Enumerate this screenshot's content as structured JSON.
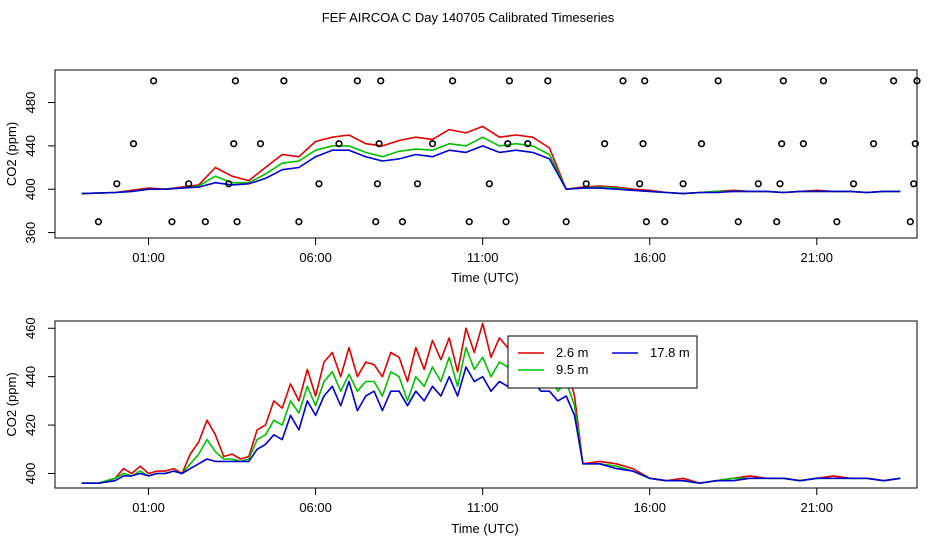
{
  "title": "FEF AIRCOA C  Day 140705  Calibrated Timeseries",
  "colors": {
    "s1": "#e00000",
    "s2": "#00c000",
    "s3": "#0000d0",
    "marker": "#000000"
  },
  "chart_data": [
    {
      "type": "line",
      "panel": "top",
      "xlabel": "Time (UTC)",
      "ylabel": "CO2 (ppm)",
      "xlim": [
        -1.8,
        24.0
      ],
      "ylim": [
        355,
        510
      ],
      "xticks": [
        1,
        6,
        11,
        16,
        21
      ],
      "xticklabels": [
        "01:00",
        "06:00",
        "11:00",
        "16:00",
        "21:00"
      ],
      "yticks": [
        360,
        400,
        440,
        480
      ],
      "yticklabels": [
        "360",
        "400",
        "440",
        "480"
      ],
      "series": [
        {
          "name": "2.6 m",
          "color": "#e00000",
          "x": [
            -1,
            0,
            0.5,
            1,
            1.5,
            2,
            2.5,
            3,
            3.5,
            4,
            4.5,
            5,
            5.5,
            6,
            6.5,
            7,
            7.5,
            8,
            8.5,
            9,
            9.5,
            10,
            10.5,
            11,
            11.5,
            12,
            12.5,
            13,
            13.5,
            14,
            14.5,
            15,
            15.5,
            16,
            16.5,
            17,
            17.5,
            18,
            18.5,
            19,
            19.5,
            20,
            20.5,
            21,
            21.5,
            22,
            22.5,
            23,
            23.5
          ],
          "values": [
            396,
            397,
            399,
            401,
            400,
            402,
            404,
            420,
            412,
            408,
            420,
            432,
            430,
            444,
            448,
            450,
            442,
            440,
            445,
            448,
            446,
            455,
            452,
            458,
            448,
            450,
            448,
            438,
            400,
            402,
            403,
            402,
            400,
            399,
            397,
            396,
            397,
            398,
            399,
            398,
            398,
            397,
            398,
            399,
            398,
            398,
            397,
            398,
            398
          ]
        },
        {
          "name": "9.5 m",
          "color": "#00c000",
          "x": [
            -1,
            0,
            0.5,
            1,
            1.5,
            2,
            2.5,
            3,
            3.5,
            4,
            4.5,
            5,
            5.5,
            6,
            6.5,
            7,
            7.5,
            8,
            8.5,
            9,
            9.5,
            10,
            10.5,
            11,
            11.5,
            12,
            12.5,
            13,
            13.5,
            14,
            14.5,
            15,
            15.5,
            16,
            16.5,
            17,
            17.5,
            18,
            18.5,
            19,
            19.5,
            20,
            20.5,
            21,
            21.5,
            22,
            22.5,
            23,
            23.5
          ],
          "values": [
            396,
            397,
            398,
            400,
            400,
            401,
            403,
            412,
            406,
            406,
            414,
            424,
            426,
            436,
            440,
            440,
            434,
            430,
            435,
            437,
            436,
            442,
            440,
            448,
            440,
            442,
            440,
            432,
            400,
            401,
            402,
            401,
            399,
            398,
            397,
            396,
            397,
            398,
            398,
            398,
            398,
            397,
            398,
            398,
            398,
            398,
            397,
            398,
            398
          ]
        },
        {
          "name": "17.8 m",
          "color": "#0000d0",
          "x": [
            -1,
            0,
            0.5,
            1,
            1.5,
            2,
            2.5,
            3,
            3.5,
            4,
            4.5,
            5,
            5.5,
            6,
            6.5,
            7,
            7.5,
            8,
            8.5,
            9,
            9.5,
            10,
            10.5,
            11,
            11.5,
            12,
            12.5,
            13,
            13.5,
            14,
            14.5,
            15,
            15.5,
            16,
            16.5,
            17,
            17.5,
            18,
            18.5,
            19,
            19.5,
            20,
            20.5,
            21,
            21.5,
            22,
            22.5,
            23,
            23.5
          ],
          "values": [
            396,
            397,
            398,
            400,
            400,
            401,
            402,
            406,
            404,
            405,
            410,
            418,
            420,
            430,
            436,
            436,
            430,
            426,
            428,
            432,
            430,
            436,
            434,
            440,
            434,
            436,
            434,
            428,
            400,
            401,
            401,
            400,
            399,
            398,
            397,
            396,
            397,
            397,
            398,
            398,
            398,
            397,
            398,
            398,
            398,
            398,
            397,
            398,
            398
          ]
        },
        {
          "name": "markers",
          "color": "#000000",
          "style": "points",
          "x": [
            -0.5,
            0.05,
            0.55,
            1.15,
            1.7,
            2.2,
            2.7,
            3.4,
            3.55,
            3.6,
            3.65,
            4.35,
            5.05,
            5.5,
            6.1,
            6.7,
            7.25,
            7.8,
            7.85,
            7.9,
            7.95,
            8.6,
            9.05,
            9.5,
            10.1,
            10.6,
            11.2,
            11.7,
            11.75,
            11.8,
            12.35,
            12.95,
            13.5,
            14.1,
            14.65,
            15.2,
            15.7,
            15.8,
            15.85,
            15.9,
            16.45,
            17.0,
            17.55,
            18.05,
            18.65,
            19.25,
            19.8,
            19.9,
            19.95,
            20.0,
            20.6,
            21.2,
            21.6,
            22.1,
            22.7,
            23.3,
            23.8,
            23.9,
            23.95,
            24.0
          ],
          "values": [
            370,
            405,
            442,
            500,
            370,
            405,
            370,
            405,
            442,
            500,
            370,
            442,
            500,
            370,
            405,
            442,
            500,
            370,
            405,
            442,
            500,
            370,
            405,
            442,
            500,
            370,
            405,
            370,
            442,
            500,
            442,
            500,
            370,
            405,
            442,
            500,
            405,
            442,
            500,
            370,
            370,
            405,
            442,
            500,
            370,
            405,
            370,
            405,
            442,
            500,
            442,
            500,
            370,
            405,
            442,
            500,
            370,
            405,
            442,
            500
          ]
        }
      ]
    },
    {
      "type": "line",
      "panel": "bottom",
      "xlabel": "Time (UTC)",
      "ylabel": "CO2 (ppm)",
      "xlim": [
        -1.8,
        24.0
      ],
      "ylim": [
        394,
        463
      ],
      "xticks": [
        1,
        6,
        11,
        16,
        21
      ],
      "xticklabels": [
        "01:00",
        "06:00",
        "11:00",
        "16:00",
        "21:00"
      ],
      "yticks": [
        400,
        420,
        440,
        460
      ],
      "yticklabels": [
        "400",
        "420",
        "440",
        "460"
      ],
      "legend": {
        "position": "top-center",
        "entries": [
          "2.6 m",
          "17.8 m",
          "9.5 m"
        ]
      },
      "series": [
        {
          "name": "2.6 m",
          "color": "#e00000",
          "x": [
            -1,
            -0.5,
            0,
            0.25,
            0.5,
            0.75,
            1,
            1.25,
            1.5,
            1.75,
            2,
            2.25,
            2.5,
            2.75,
            3,
            3.25,
            3.5,
            3.75,
            4,
            4.25,
            4.5,
            4.75,
            5,
            5.25,
            5.5,
            5.75,
            6,
            6.25,
            6.5,
            6.75,
            7,
            7.25,
            7.5,
            7.75,
            8,
            8.25,
            8.5,
            8.75,
            9,
            9.25,
            9.5,
            9.75,
            10,
            10.25,
            10.5,
            10.75,
            11,
            11.25,
            11.5,
            11.75,
            12,
            12.25,
            12.5,
            12.75,
            13,
            13.25,
            13.5,
            13.75,
            14,
            14.5,
            15,
            15.5,
            16,
            16.5,
            17,
            17.5,
            18,
            18.5,
            19,
            19.5,
            20,
            20.5,
            21,
            21.5,
            22,
            22.5,
            23,
            23.5
          ],
          "values": [
            396,
            396,
            398,
            402,
            400,
            403,
            400,
            401,
            401,
            402,
            400,
            408,
            413,
            422,
            416,
            407,
            408,
            406,
            407,
            418,
            420,
            430,
            427,
            437,
            430,
            443,
            432,
            446,
            450,
            440,
            452,
            440,
            446,
            445,
            440,
            450,
            448,
            438,
            452,
            443,
            455,
            447,
            456,
            442,
            460,
            450,
            462,
            448,
            456,
            452,
            455,
            448,
            456,
            450,
            449,
            440,
            445,
            432,
            404,
            405,
            404,
            402,
            398,
            397,
            398,
            396,
            397,
            398,
            399,
            398,
            398,
            397,
            398,
            399,
            398,
            398,
            397,
            398
          ]
        },
        {
          "name": "9.5 m",
          "color": "#00c000",
          "x": [
            -1,
            -0.5,
            0,
            0.25,
            0.5,
            0.75,
            1,
            1.25,
            1.5,
            1.75,
            2,
            2.25,
            2.5,
            2.75,
            3,
            3.25,
            3.5,
            3.75,
            4,
            4.25,
            4.5,
            4.75,
            5,
            5.25,
            5.5,
            5.75,
            6,
            6.25,
            6.5,
            6.75,
            7,
            7.25,
            7.5,
            7.75,
            8,
            8.25,
            8.5,
            8.75,
            9,
            9.25,
            9.5,
            9.75,
            10,
            10.25,
            10.5,
            10.75,
            11,
            11.25,
            11.5,
            11.75,
            12,
            12.25,
            12.5,
            12.75,
            13,
            13.25,
            13.5,
            13.75,
            14,
            14.5,
            15,
            15.5,
            16,
            16.5,
            17,
            17.5,
            18,
            18.5,
            19,
            19.5,
            20,
            20.5,
            21,
            21.5,
            22,
            22.5,
            23,
            23.5
          ],
          "values": [
            396,
            396,
            398,
            400,
            399,
            401,
            399,
            400,
            400,
            401,
            400,
            404,
            408,
            414,
            409,
            406,
            406,
            405,
            406,
            414,
            416,
            422,
            420,
            430,
            425,
            436,
            428,
            438,
            442,
            434,
            441,
            434,
            438,
            438,
            432,
            442,
            440,
            430,
            440,
            436,
            444,
            438,
            448,
            436,
            452,
            443,
            448,
            440,
            446,
            444,
            446,
            440,
            444,
            441,
            441,
            434,
            438,
            428,
            404,
            404,
            403,
            401,
            398,
            397,
            397,
            396,
            397,
            398,
            398,
            398,
            398,
            397,
            398,
            398,
            398,
            398,
            397,
            398
          ]
        },
        {
          "name": "17.8 m",
          "color": "#0000d0",
          "x": [
            -1,
            -0.5,
            0,
            0.25,
            0.5,
            0.75,
            1,
            1.25,
            1.5,
            1.75,
            2,
            2.25,
            2.5,
            2.75,
            3,
            3.25,
            3.5,
            3.75,
            4,
            4.25,
            4.5,
            4.75,
            5,
            5.25,
            5.5,
            5.75,
            6,
            6.25,
            6.5,
            6.75,
            7,
            7.25,
            7.5,
            7.75,
            8,
            8.25,
            8.5,
            8.75,
            9,
            9.25,
            9.5,
            9.75,
            10,
            10.25,
            10.5,
            10.75,
            11,
            11.25,
            11.5,
            11.75,
            12,
            12.25,
            12.5,
            12.75,
            13,
            13.25,
            13.5,
            13.75,
            14,
            14.5,
            15,
            15.5,
            16,
            16.5,
            17,
            17.5,
            18,
            18.5,
            19,
            19.5,
            20,
            20.5,
            21,
            21.5,
            22,
            22.5,
            23,
            23.5
          ],
          "values": [
            396,
            396,
            397,
            399,
            399,
            400,
            399,
            400,
            400,
            401,
            400,
            402,
            404,
            406,
            405,
            405,
            405,
            405,
            405,
            410,
            412,
            416,
            414,
            424,
            418,
            430,
            424,
            432,
            436,
            428,
            438,
            426,
            432,
            434,
            426,
            434,
            434,
            428,
            434,
            430,
            436,
            432,
            440,
            432,
            444,
            438,
            440,
            434,
            438,
            436,
            440,
            436,
            438,
            434,
            434,
            430,
            432,
            424,
            404,
            404,
            402,
            401,
            398,
            397,
            397,
            396,
            397,
            397,
            398,
            398,
            398,
            397,
            398,
            398,
            398,
            398,
            397,
            398
          ]
        }
      ]
    }
  ]
}
